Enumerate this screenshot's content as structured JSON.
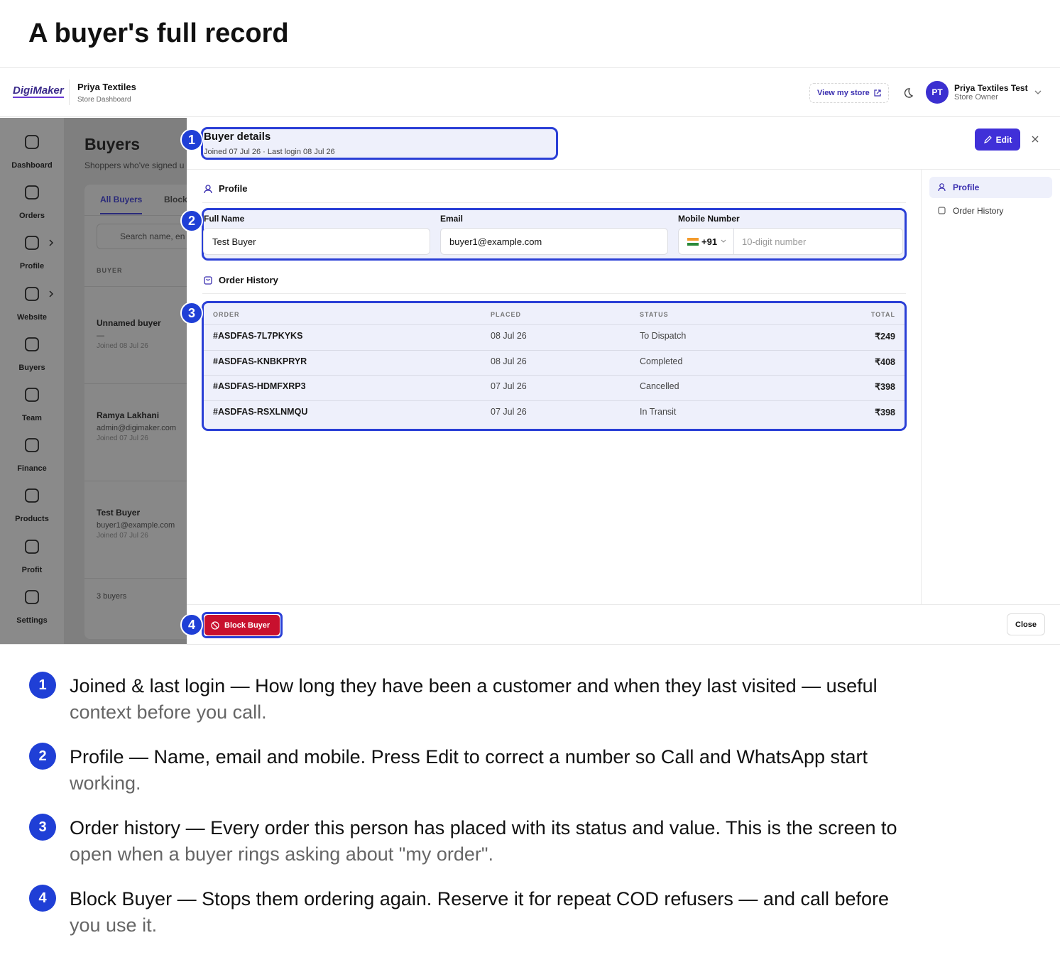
{
  "header": {
    "title": "A buyer's full record"
  },
  "app": {
    "logo": "DigiMaker",
    "store_name": "Priya Textiles",
    "store_sub": "Store Dashboard",
    "view_store": "View my store",
    "avatar": "PT",
    "user_name": "Priya Textiles Test",
    "user_role": "Store Owner",
    "sidebar": [
      {
        "label": "Dashboard",
        "has_submenu": false
      },
      {
        "label": "Orders",
        "has_submenu": false
      },
      {
        "label": "Profile",
        "has_submenu": true
      },
      {
        "label": "Website",
        "has_submenu": true
      },
      {
        "label": "Buyers",
        "has_submenu": false
      },
      {
        "label": "Team",
        "has_submenu": false
      },
      {
        "label": "Finance",
        "has_submenu": false
      },
      {
        "label": "Products",
        "has_submenu": false
      },
      {
        "label": "Profit",
        "has_submenu": false
      },
      {
        "label": "Settings",
        "has_submenu": false
      }
    ],
    "page_title": "Buyers",
    "page_sub": "Shoppers who've signed u",
    "tabs": [
      "All Buyers",
      "Block"
    ],
    "search_placeholder": "Search name, en",
    "column": "BUYER",
    "buyers": [
      {
        "name": "Unnamed buyer",
        "email": "—",
        "joined": "Joined 08 Jul 26"
      },
      {
        "name": "Ramya Lakhani",
        "email": "admin@digimaker.com",
        "joined": "Joined 07 Jul 26"
      },
      {
        "name": "Test Buyer",
        "email": "buyer1@example.com",
        "joined": "Joined 07 Jul 26"
      }
    ],
    "count": "3 buyers"
  },
  "panel": {
    "title": "Buyer details",
    "meta": "Joined 07 Jul 26 · Last login 08 Jul 26",
    "edit": "Edit",
    "profile_heading": "Profile",
    "fields": [
      {
        "label": "Full Name",
        "value": "Test Buyer"
      },
      {
        "label": "Email",
        "value": "buyer1@example.com"
      },
      {
        "label": "Mobile Number",
        "code": "+91",
        "placeholder": "10-digit number"
      }
    ],
    "orders_heading": "Order History",
    "table": {
      "columns": [
        "ORDER",
        "PLACED",
        "STATUS",
        "TOTAL"
      ],
      "rows": [
        [
          "#ASDFAS-7L7PKYKS",
          "08 Jul 26",
          "To Dispatch",
          "₹249"
        ],
        [
          "#ASDFAS-KNBKPRYR",
          "08 Jul 26",
          "Completed",
          "₹408"
        ],
        [
          "#ASDFAS-HDMFXRP3",
          "07 Jul 26",
          "Cancelled",
          "₹398"
        ],
        [
          "#ASDFAS-RSXLNMQU",
          "07 Jul 26",
          "In Transit",
          "₹398"
        ]
      ]
    },
    "side_nav": [
      "Profile",
      "Order History"
    ],
    "block": "Block Buyer",
    "close": "Close"
  },
  "callouts": [
    1,
    2,
    3,
    4
  ],
  "notes": [
    {
      "number": 1,
      "title": "Joined & last login",
      "text": "— How long they have been a customer and when they last visited — useful context before you call."
    },
    {
      "number": 2,
      "title": "Profile",
      "text": "— Name, email and mobile. Press Edit to correct a number so Call and WhatsApp start working."
    },
    {
      "number": 3,
      "title": "Order history",
      "text": "— Every order this person has placed with its status and value. This is the screen to open when a buyer rings asking about \"my order\"."
    },
    {
      "number": 4,
      "title": "Block Buyer",
      "text": "— Stops them ordering again. Reserve it for repeat COD refusers — and call before you use it."
    }
  ]
}
